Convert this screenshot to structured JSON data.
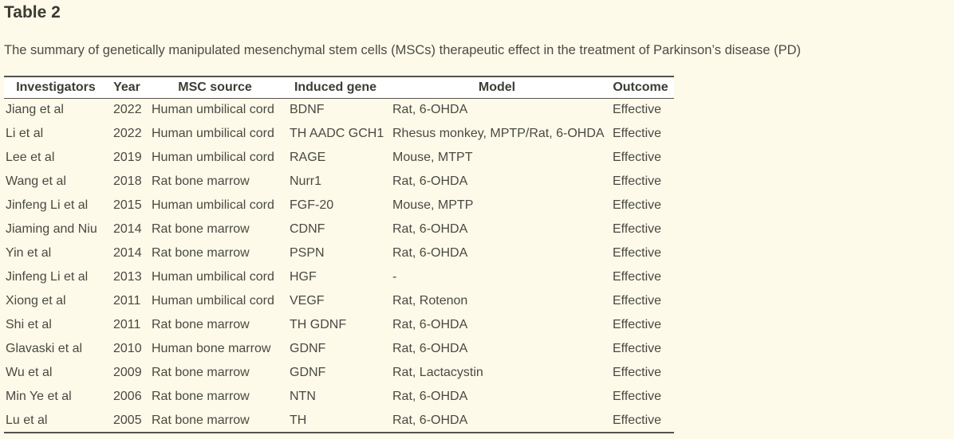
{
  "page": {
    "title": "Table 2",
    "caption": "The summary of genetically manipulated mesenchymal stem cells (MSCs) therapeutic effect in the treatment of Parkinson’s disease (PD)"
  },
  "table": {
    "columns": [
      "Investigators",
      "Year",
      "MSC source",
      "Induced gene",
      "Model",
      "Outcome"
    ],
    "rows": [
      [
        "Jiang et al",
        "2022",
        "Human umbilical cord",
        "BDNF",
        "Rat, 6-OHDA",
        "Effective"
      ],
      [
        "Li et al",
        "2022",
        "Human umbilical cord",
        "TH AADC GCH1",
        "Rhesus monkey, MPTP/Rat, 6-OHDA",
        "Effective"
      ],
      [
        "Lee et al",
        "2019",
        "Human umbilical cord",
        "RAGE",
        "Mouse, MTPT",
        "Effective"
      ],
      [
        "Wang et al",
        "2018",
        "Rat bone marrow",
        "Nurr1",
        "Rat, 6-OHDA",
        "Effective"
      ],
      [
        "Jinfeng Li et al",
        "2015",
        "Human umbilical cord",
        "FGF-20",
        "Mouse, MPTP",
        "Effective"
      ],
      [
        "Jiaming and Niu",
        "2014",
        "Rat bone marrow",
        "CDNF",
        "Rat, 6-OHDA",
        "Effective"
      ],
      [
        "Yin et al",
        "2014",
        "Rat bone marrow",
        "PSPN",
        "Rat, 6-OHDA",
        "Effective"
      ],
      [
        "Jinfeng Li et al",
        "2013",
        "Human umbilical cord",
        "HGF",
        "-",
        "Effective"
      ],
      [
        "Xiong et al",
        "2011",
        "Human umbilical cord",
        "VEGF",
        "Rat, Rotenon",
        "Effective"
      ],
      [
        "Shi et al",
        "2011",
        "Rat bone marrow",
        "TH GDNF",
        "Rat, 6-OHDA",
        "Effective"
      ],
      [
        "Glavaski et al",
        "2010",
        "Human bone marrow",
        "GDNF",
        "Rat, 6-OHDA",
        "Effective"
      ],
      [
        "Wu et al",
        "2009",
        "Rat bone marrow",
        "GDNF",
        "Rat, Lactacystin",
        "Effective"
      ],
      [
        "Min Ye et al",
        "2006",
        "Rat bone marrow",
        "NTN",
        "Rat, 6-OHDA",
        "Effective"
      ],
      [
        "Lu et al",
        "2005",
        "Rat bone marrow",
        "TH",
        "Rat, 6-OHDA",
        "Effective"
      ]
    ]
  },
  "theme": {
    "background": "#fdfae9",
    "header_bg": "#ffffff",
    "border": "#54534b",
    "text": "#4a4942",
    "heading_text": "#3b3a33"
  }
}
